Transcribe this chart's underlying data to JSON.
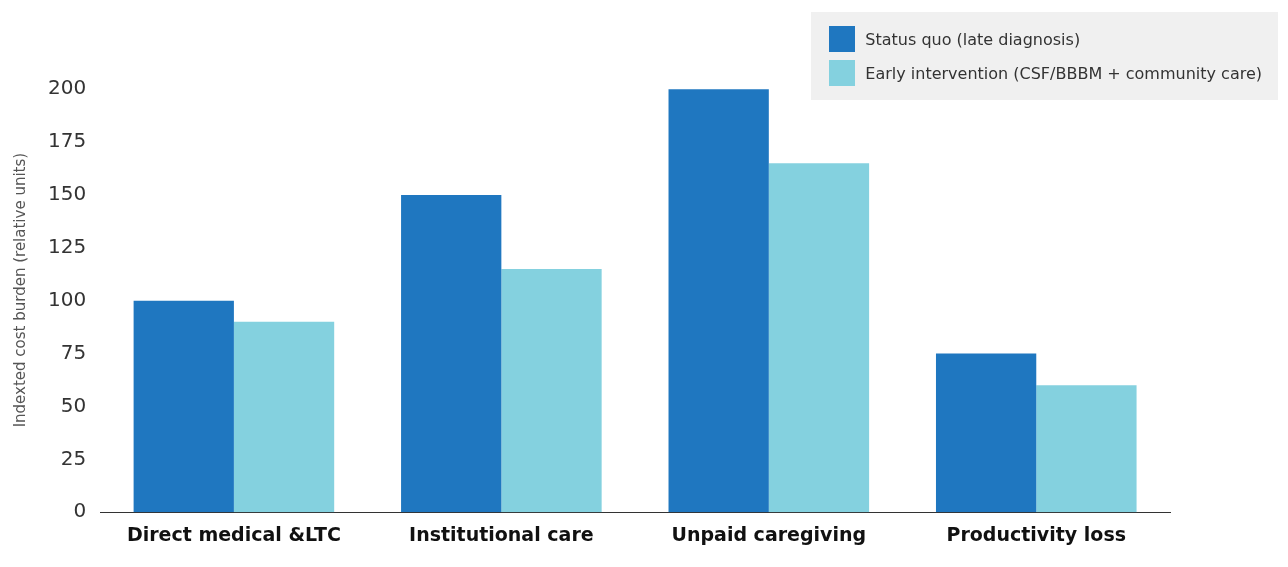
{
  "chart_data": {
    "type": "bar",
    "ylabel": "Indexted cost burden (relative units)",
    "categories": [
      "Direct medical &LTC",
      "Institutional care",
      "Unpaid caregiving",
      "Productivity loss"
    ],
    "series": [
      {
        "name": "Status quo (late diagnosis)",
        "color": "#1f77c0",
        "values": [
          100,
          150,
          200,
          75
        ]
      },
      {
        "name": "Early intervention (CSF/BBBM + community care)",
        "color": "#84d1df",
        "values": [
          90,
          115,
          165,
          60
        ]
      }
    ],
    "ylim": [
      0,
      210
    ],
    "yticks": [
      0,
      25,
      50,
      75,
      100,
      125,
      150,
      175,
      200
    ],
    "grid": false,
    "legend": "top right"
  }
}
